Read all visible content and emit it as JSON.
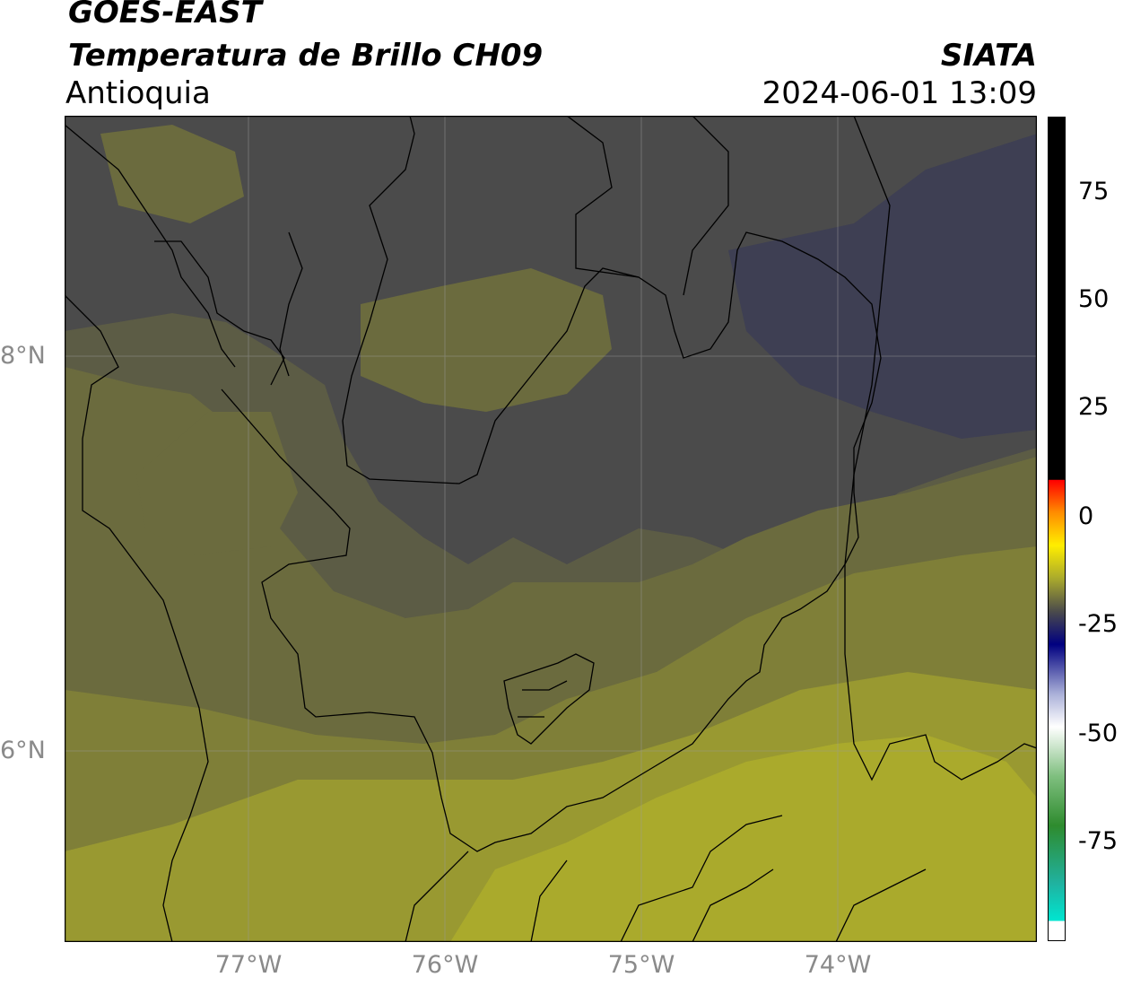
{
  "header": {
    "satellite": "GOES-EAST",
    "product": "Temperatura de Brillo CH09",
    "region": "Antioquia",
    "agency": "SIATA",
    "datetime": "2024-06-01 13:09"
  },
  "map": {
    "lat_labels": [
      "8°N",
      "6°N"
    ],
    "lon_labels": [
      "77°W",
      "76°W",
      "75°W",
      "74°W"
    ],
    "gridlines": true,
    "colors": {
      "cold_blue_gray": "#3e3f53",
      "dark_gray": "#4b4b4b",
      "olive_dark": "#5c5c45",
      "olive_mid": "#6b6b3e",
      "olive": "#7f7f38",
      "olive_light": "#999931",
      "yellow": "#aaaa2c",
      "border_line": "#000000"
    }
  },
  "colorbar": {
    "ticks": [
      "75",
      "50",
      "25",
      "0",
      "-25",
      "-50",
      "-75"
    ],
    "colors": {
      "warm_black": "#000000",
      "red": "#ff0000",
      "orange": "#ff8c00",
      "yellow": "#ffee00",
      "olive": "#6b6b3e",
      "navy": "#000080",
      "white": "#ffffff",
      "green": "#2e8b2e",
      "cyan": "#00e5d0"
    }
  }
}
